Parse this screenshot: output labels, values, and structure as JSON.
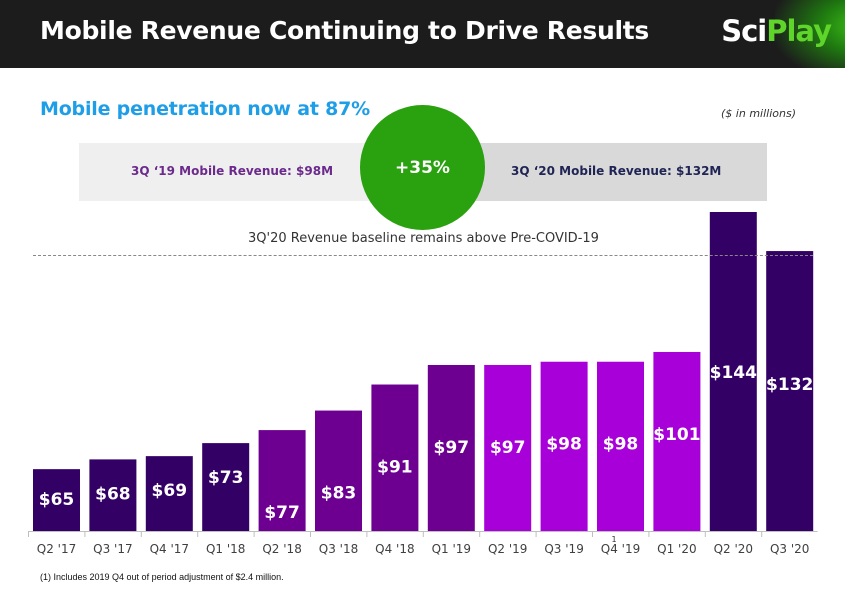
{
  "header": {
    "title": "Mobile Revenue Continuing to Drive Results",
    "logo_part1": "Sci",
    "logo_part2": "Play"
  },
  "subtitle": "Mobile penetration now at 87%",
  "units_note": "($ in millions)",
  "comparison": {
    "left_label": "3Q ‘19 Mobile Revenue: $98M",
    "right_label": "3Q ‘20 Mobile Revenue: $132M",
    "growth": "+35%"
  },
  "baseline_note": "3Q'20 Revenue baseline remains above Pre-COVID-19",
  "footnote": "(1) Includes 2019 Q4 out of period adjustment of $2.4 million.",
  "colors": {
    "dark_purple": "#330066",
    "mid_purple": "#6e0091",
    "bright_purple": "#a800d8",
    "green": "#2aa10f",
    "blue": "#1f9ee8"
  },
  "chart_data": {
    "type": "bar",
    "title": "Mobile Revenue",
    "xlabel": "",
    "ylabel": "Revenue ($ in millions)",
    "ylim": [
      46,
      146
    ],
    "grid": false,
    "categories": [
      "Q2 '17",
      "Q3 '17",
      "Q4 '17",
      "Q1 '18",
      "Q2 '18",
      "Q3 '18",
      "Q4 '18",
      "Q1 '19",
      "Q2 '19",
      "Q3 '19",
      "Q4 '19",
      "Q1 '20",
      "Q2 '20",
      "Q3 '20"
    ],
    "values": [
      65,
      68,
      69,
      73,
      77,
      83,
      91,
      97,
      97,
      98,
      98,
      101,
      144,
      132
    ],
    "data_labels": [
      "$65",
      "$68",
      "$69",
      "$73",
      "$77",
      "$83",
      "$91",
      "$97",
      "$97",
      "$98",
      "$98",
      "$101",
      "$144",
      "$132"
    ],
    "bar_color_group": [
      "dark",
      "dark",
      "dark",
      "dark",
      "mid",
      "mid",
      "mid",
      "mid",
      "bright",
      "bright",
      "bright",
      "bright",
      "dark",
      "dark"
    ],
    "annotations": [
      {
        "category": "Q4 '19",
        "text": "1"
      },
      {
        "text": "3Q'20 Revenue baseline remains above Pre-COVID-19",
        "type": "reference-line",
        "value": 132
      }
    ]
  }
}
